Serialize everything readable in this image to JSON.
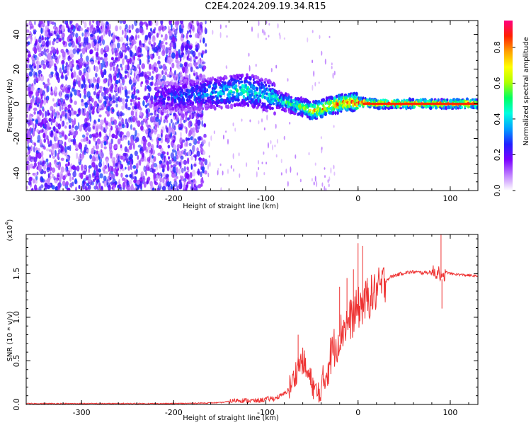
{
  "title": "C2E4.2024.209.19.34.R15",
  "chart_data": [
    {
      "type": "heatmap",
      "xlabel": "Height of straight line (km)",
      "ylabel": "Frequency (Hz)",
      "xlim": [
        -360,
        130
      ],
      "ylim": [
        -50,
        48
      ],
      "x_ticks": [
        -300,
        -200,
        -100,
        0,
        100
      ],
      "x_tick_labels": [
        "-300",
        "-200",
        "-100",
        "0",
        "100"
      ],
      "y_ticks": [
        -40,
        -20,
        0,
        20,
        40
      ],
      "y_tick_labels": [
        "-40",
        "-20",
        "0",
        "20",
        "40"
      ],
      "colorbar": {
        "label": "Normalized spectral amplitude",
        "range": [
          0,
          0.95
        ],
        "ticks": [
          0.0,
          0.2,
          0.4,
          0.6,
          0.8
        ],
        "tick_labels": [
          "0.0",
          "0.2",
          "0.4",
          "0.6",
          "0.8"
        ],
        "colors": [
          "#ffffff",
          "#c080ff",
          "#7a00ff",
          "#2020ff",
          "#00a0ff",
          "#00ffe0",
          "#00ff60",
          "#b0ff00",
          "#ffff00",
          "#ffa000",
          "#ff2000",
          "#ff0080"
        ]
      },
      "ridge": {
        "x": [
          -220,
          -200,
          -180,
          -160,
          -140,
          -120,
          -100,
          -80,
          -60,
          -50,
          -40,
          -30,
          -20,
          -10,
          0,
          20,
          60,
          100,
          130
        ],
        "frequency": [
          4,
          4,
          5,
          6,
          7,
          8,
          5,
          1,
          -2,
          -4,
          -3,
          -1,
          0,
          1,
          1,
          0,
          0,
          0,
          0
        ],
        "amplitude": [
          0.25,
          0.3,
          0.35,
          0.4,
          0.45,
          0.5,
          0.45,
          0.5,
          0.6,
          0.75,
          0.8,
          0.8,
          0.85,
          0.85,
          0.9,
          0.9,
          0.9,
          0.9,
          0.9
        ]
      }
    },
    {
      "type": "line",
      "xlabel": "Height of straight line (km)",
      "ylabel": "SNR (10 * v/v)",
      "y_multiplier": "(x10",
      "y_multiplier_exp": "4",
      "y_multiplier_close": ")",
      "xlim": [
        -360,
        130
      ],
      "ylim": [
        0,
        1.95
      ],
      "x_ticks": [
        -300,
        -200,
        -100,
        0,
        100
      ],
      "x_tick_labels": [
        "-300",
        "-200",
        "-100",
        "0",
        "100"
      ],
      "y_ticks": [
        0,
        0.5,
        1.0,
        1.5
      ],
      "y_tick_labels": [
        "0.0",
        "0.5",
        "1.0",
        "1.5"
      ],
      "color": "#ee3333",
      "x": [
        -360,
        -300,
        -200,
        -150,
        -130,
        -110,
        -100,
        -90,
        -80,
        -75,
        -70,
        -65,
        -60,
        -55,
        -50,
        -45,
        -42,
        -40,
        -35,
        -30,
        -25,
        -20,
        -15,
        -10,
        -5,
        0,
        5,
        10,
        15,
        20,
        25,
        30,
        35,
        40,
        50,
        60,
        70,
        80,
        85,
        88,
        90,
        92,
        95,
        100,
        110,
        120,
        130
      ],
      "y": [
        0.01,
        0.01,
        0.01,
        0.02,
        0.05,
        0.04,
        0.06,
        0.07,
        0.12,
        0.18,
        0.28,
        0.45,
        0.5,
        0.35,
        0.25,
        0.12,
        0.08,
        0.12,
        0.35,
        0.55,
        0.68,
        0.78,
        0.9,
        0.95,
        1.02,
        1.1,
        1.15,
        1.2,
        1.25,
        1.3,
        1.35,
        1.42,
        1.46,
        1.48,
        1.51,
        1.52,
        1.51,
        1.52,
        1.5,
        1.55,
        1.45,
        1.42,
        1.52,
        1.5,
        1.49,
        1.48,
        1.47
      ],
      "spikes": [
        {
          "x": -65,
          "y": 0.8
        },
        {
          "x": -58,
          "y": 0.62
        },
        {
          "x": -20,
          "y": 1.35
        },
        {
          "x": -12,
          "y": 1.45
        },
        {
          "x": -5,
          "y": 1.55
        },
        {
          "x": 0,
          "y": 1.85
        },
        {
          "x": 5,
          "y": 1.82
        },
        {
          "x": 10,
          "y": 1.45
        },
        {
          "x": 15,
          "y": 1.35
        },
        {
          "x": 20,
          "y": 1.4
        },
        {
          "x": 90,
          "y": 1.95
        },
        {
          "x": 91,
          "y": 1.1
        }
      ]
    }
  ]
}
